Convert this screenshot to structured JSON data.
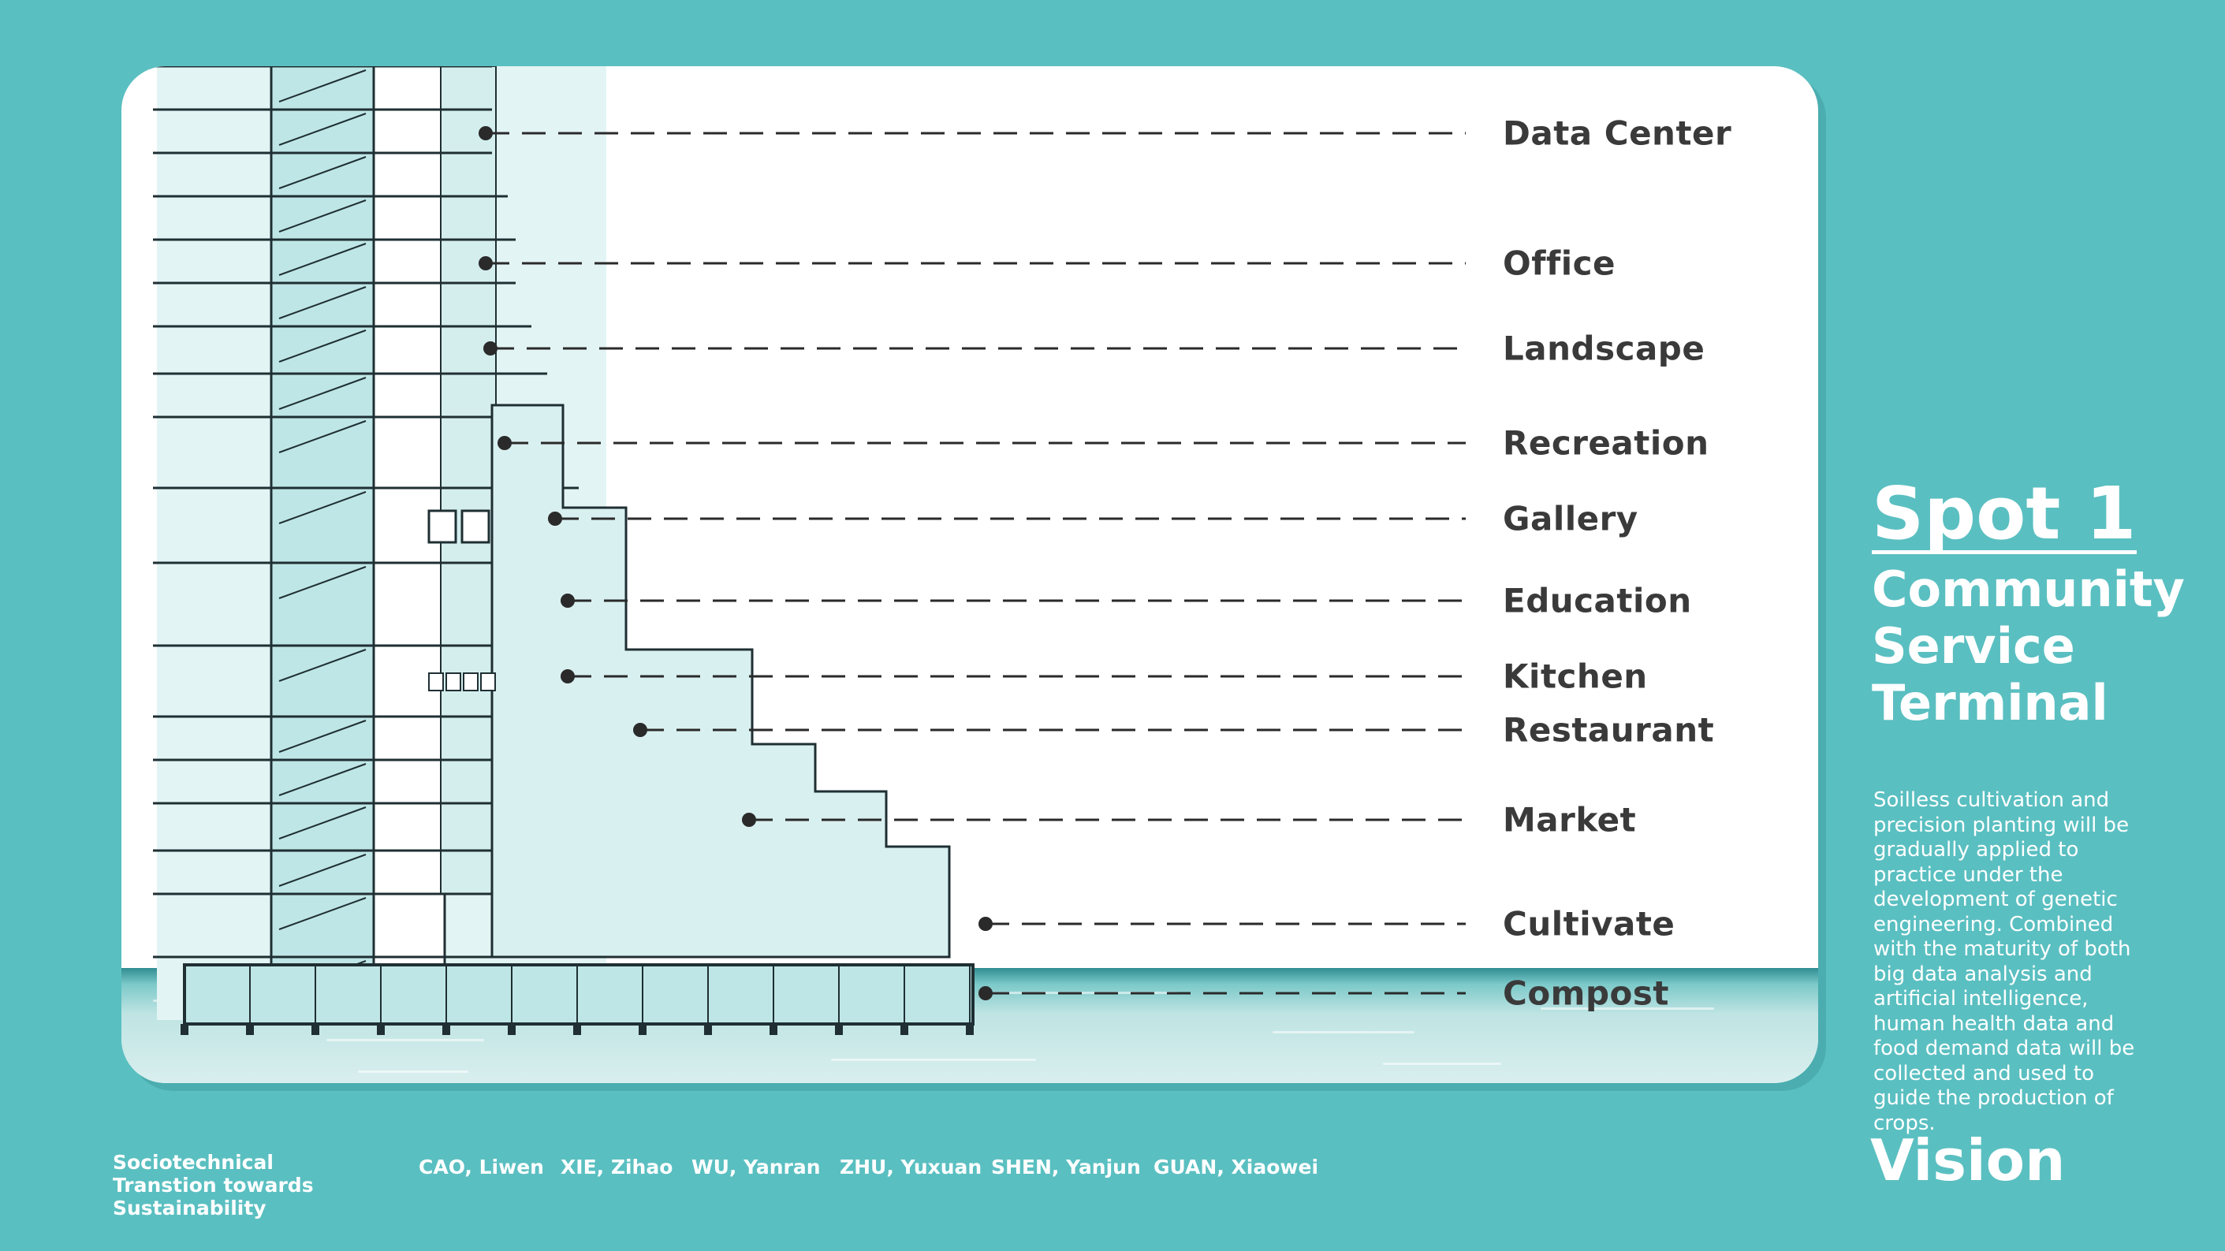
{
  "sidebar": {
    "spot": "Spot 1",
    "subtitle_lines": [
      "Community",
      "Service",
      "Terminal"
    ],
    "description": "Soilless cultivation and precision planting will be gradually applied to practice under the development of genetic engineering. Combined with the maturity of both big data analysis and artificial intelligence, human health data and food demand data will be collected and used to guide the production of crops.",
    "section": "Vision"
  },
  "diagram": {
    "labels": [
      "Data Center",
      "Office",
      "Landscape",
      "Recreation",
      "Gallery",
      "Education",
      "Kitchen",
      "Restaurant",
      "Market",
      "Cultivate",
      "Compost"
    ]
  },
  "footer": {
    "project_title": "Sociotechnical Transtion towards Sustainability",
    "authors": [
      "CAO, Liwen",
      "XIE, Zihao",
      "WU, Yanran",
      "ZHU, Yuxuan",
      "SHEN, Yanjun",
      "GUAN, Xiaowei"
    ]
  },
  "colors": {
    "background": "#5abfc1",
    "card": "#ffffff",
    "glass": "#bfe6e6",
    "label_text": "#3a3a3a"
  }
}
